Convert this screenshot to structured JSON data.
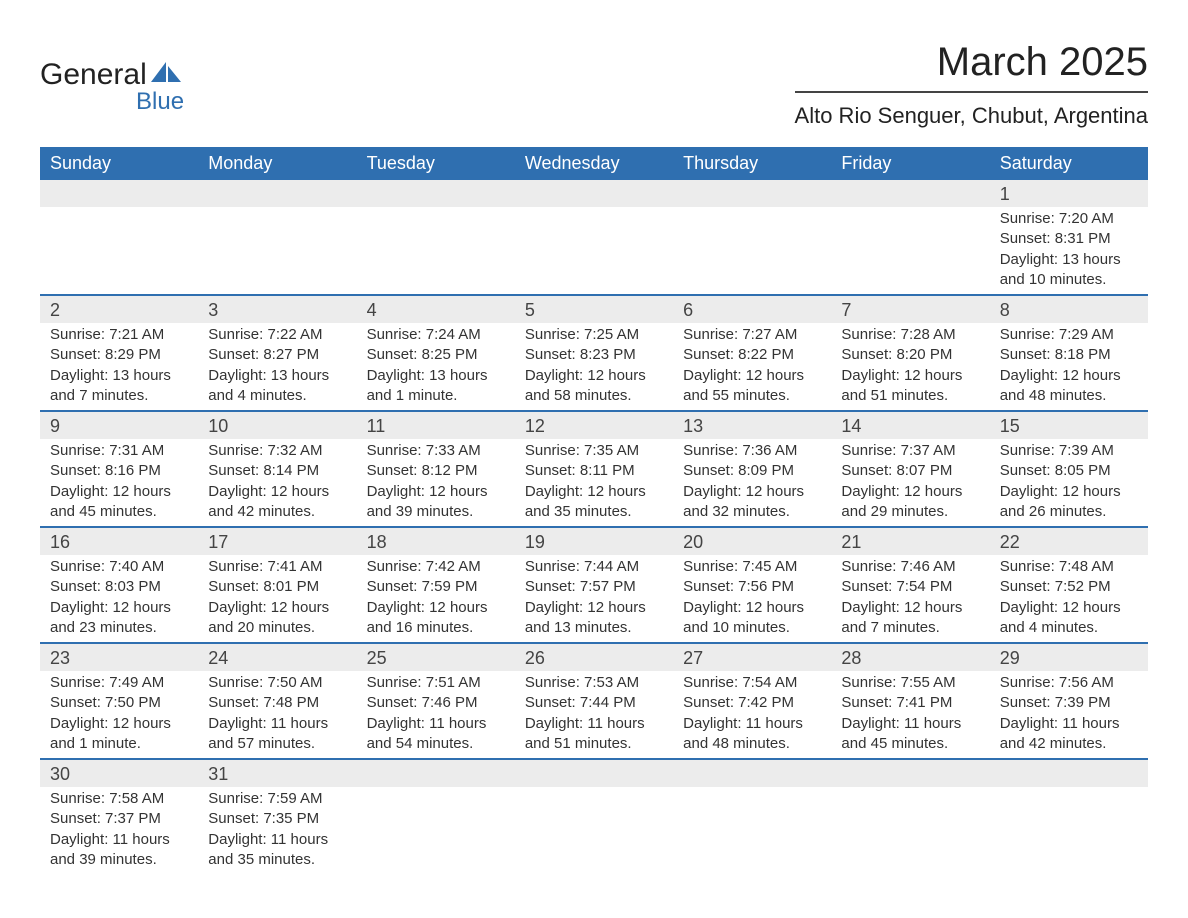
{
  "logo": {
    "word1": "General",
    "word2": "Blue",
    "sail_color": "#2f6fb0"
  },
  "title": "March 2025",
  "location": "Alto Rio Senguer, Chubut, Argentina",
  "colors": {
    "header_bg": "#2f6fb0",
    "header_text": "#ffffff",
    "daynum_bg": "#ececec",
    "row_border": "#2f6fb0",
    "text": "#333333"
  },
  "weekdays": [
    "Sunday",
    "Monday",
    "Tuesday",
    "Wednesday",
    "Thursday",
    "Friday",
    "Saturday"
  ],
  "weeks": [
    [
      null,
      null,
      null,
      null,
      null,
      null,
      {
        "n": "1",
        "sunrise": "7:20 AM",
        "sunset": "8:31 PM",
        "daylight": "13 hours and 10 minutes."
      }
    ],
    [
      {
        "n": "2",
        "sunrise": "7:21 AM",
        "sunset": "8:29 PM",
        "daylight": "13 hours and 7 minutes."
      },
      {
        "n": "3",
        "sunrise": "7:22 AM",
        "sunset": "8:27 PM",
        "daylight": "13 hours and 4 minutes."
      },
      {
        "n": "4",
        "sunrise": "7:24 AM",
        "sunset": "8:25 PM",
        "daylight": "13 hours and 1 minute."
      },
      {
        "n": "5",
        "sunrise": "7:25 AM",
        "sunset": "8:23 PM",
        "daylight": "12 hours and 58 minutes."
      },
      {
        "n": "6",
        "sunrise": "7:27 AM",
        "sunset": "8:22 PM",
        "daylight": "12 hours and 55 minutes."
      },
      {
        "n": "7",
        "sunrise": "7:28 AM",
        "sunset": "8:20 PM",
        "daylight": "12 hours and 51 minutes."
      },
      {
        "n": "8",
        "sunrise": "7:29 AM",
        "sunset": "8:18 PM",
        "daylight": "12 hours and 48 minutes."
      }
    ],
    [
      {
        "n": "9",
        "sunrise": "7:31 AM",
        "sunset": "8:16 PM",
        "daylight": "12 hours and 45 minutes."
      },
      {
        "n": "10",
        "sunrise": "7:32 AM",
        "sunset": "8:14 PM",
        "daylight": "12 hours and 42 minutes."
      },
      {
        "n": "11",
        "sunrise": "7:33 AM",
        "sunset": "8:12 PM",
        "daylight": "12 hours and 39 minutes."
      },
      {
        "n": "12",
        "sunrise": "7:35 AM",
        "sunset": "8:11 PM",
        "daylight": "12 hours and 35 minutes."
      },
      {
        "n": "13",
        "sunrise": "7:36 AM",
        "sunset": "8:09 PM",
        "daylight": "12 hours and 32 minutes."
      },
      {
        "n": "14",
        "sunrise": "7:37 AM",
        "sunset": "8:07 PM",
        "daylight": "12 hours and 29 minutes."
      },
      {
        "n": "15",
        "sunrise": "7:39 AM",
        "sunset": "8:05 PM",
        "daylight": "12 hours and 26 minutes."
      }
    ],
    [
      {
        "n": "16",
        "sunrise": "7:40 AM",
        "sunset": "8:03 PM",
        "daylight": "12 hours and 23 minutes."
      },
      {
        "n": "17",
        "sunrise": "7:41 AM",
        "sunset": "8:01 PM",
        "daylight": "12 hours and 20 minutes."
      },
      {
        "n": "18",
        "sunrise": "7:42 AM",
        "sunset": "7:59 PM",
        "daylight": "12 hours and 16 minutes."
      },
      {
        "n": "19",
        "sunrise": "7:44 AM",
        "sunset": "7:57 PM",
        "daylight": "12 hours and 13 minutes."
      },
      {
        "n": "20",
        "sunrise": "7:45 AM",
        "sunset": "7:56 PM",
        "daylight": "12 hours and 10 minutes."
      },
      {
        "n": "21",
        "sunrise": "7:46 AM",
        "sunset": "7:54 PM",
        "daylight": "12 hours and 7 minutes."
      },
      {
        "n": "22",
        "sunrise": "7:48 AM",
        "sunset": "7:52 PM",
        "daylight": "12 hours and 4 minutes."
      }
    ],
    [
      {
        "n": "23",
        "sunrise": "7:49 AM",
        "sunset": "7:50 PM",
        "daylight": "12 hours and 1 minute."
      },
      {
        "n": "24",
        "sunrise": "7:50 AM",
        "sunset": "7:48 PM",
        "daylight": "11 hours and 57 minutes."
      },
      {
        "n": "25",
        "sunrise": "7:51 AM",
        "sunset": "7:46 PM",
        "daylight": "11 hours and 54 minutes."
      },
      {
        "n": "26",
        "sunrise": "7:53 AM",
        "sunset": "7:44 PM",
        "daylight": "11 hours and 51 minutes."
      },
      {
        "n": "27",
        "sunrise": "7:54 AM",
        "sunset": "7:42 PM",
        "daylight": "11 hours and 48 minutes."
      },
      {
        "n": "28",
        "sunrise": "7:55 AM",
        "sunset": "7:41 PM",
        "daylight": "11 hours and 45 minutes."
      },
      {
        "n": "29",
        "sunrise": "7:56 AM",
        "sunset": "7:39 PM",
        "daylight": "11 hours and 42 minutes."
      }
    ],
    [
      {
        "n": "30",
        "sunrise": "7:58 AM",
        "sunset": "7:37 PM",
        "daylight": "11 hours and 39 minutes."
      },
      {
        "n": "31",
        "sunrise": "7:59 AM",
        "sunset": "7:35 PM",
        "daylight": "11 hours and 35 minutes."
      },
      null,
      null,
      null,
      null,
      null
    ]
  ],
  "labels": {
    "sunrise": "Sunrise: ",
    "sunset": "Sunset: ",
    "daylight": "Daylight: "
  }
}
